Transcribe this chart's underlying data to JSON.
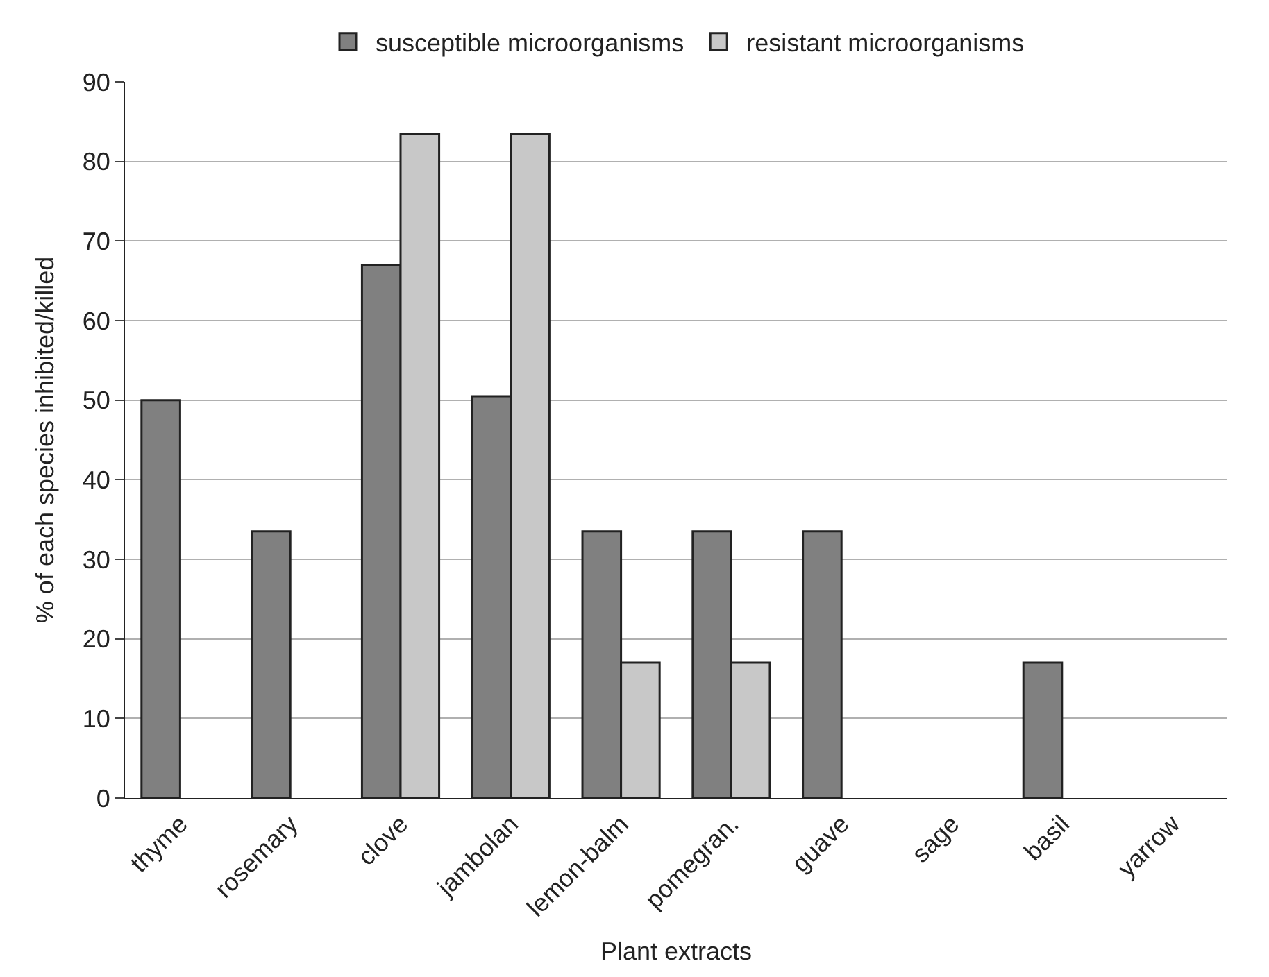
{
  "chart_data": {
    "type": "bar",
    "xlabel": "Plant extracts",
    "ylabel": "% of each species inhibited/killed",
    "categories": [
      "thyme",
      "rosemary",
      "clove",
      "jambolan",
      "lemon-balm",
      "pomegran.",
      "guave",
      "sage",
      "basil",
      "yarrow"
    ],
    "series": [
      {
        "name": "susceptible microorganisms",
        "color": "#808080",
        "values": [
          50,
          33.5,
          67,
          50.5,
          33.5,
          33.5,
          33.5,
          null,
          17,
          null
        ]
      },
      {
        "name": "resistant microorganisms",
        "color": "#c8c8c8",
        "values": [
          null,
          null,
          83.5,
          83.5,
          17,
          17,
          null,
          null,
          null,
          null
        ]
      }
    ],
    "ylim": [
      0,
      90
    ],
    "yticks": [
      0,
      10,
      20,
      30,
      40,
      50,
      60,
      70,
      80,
      90
    ],
    "grid": "y",
    "legend": "top"
  }
}
